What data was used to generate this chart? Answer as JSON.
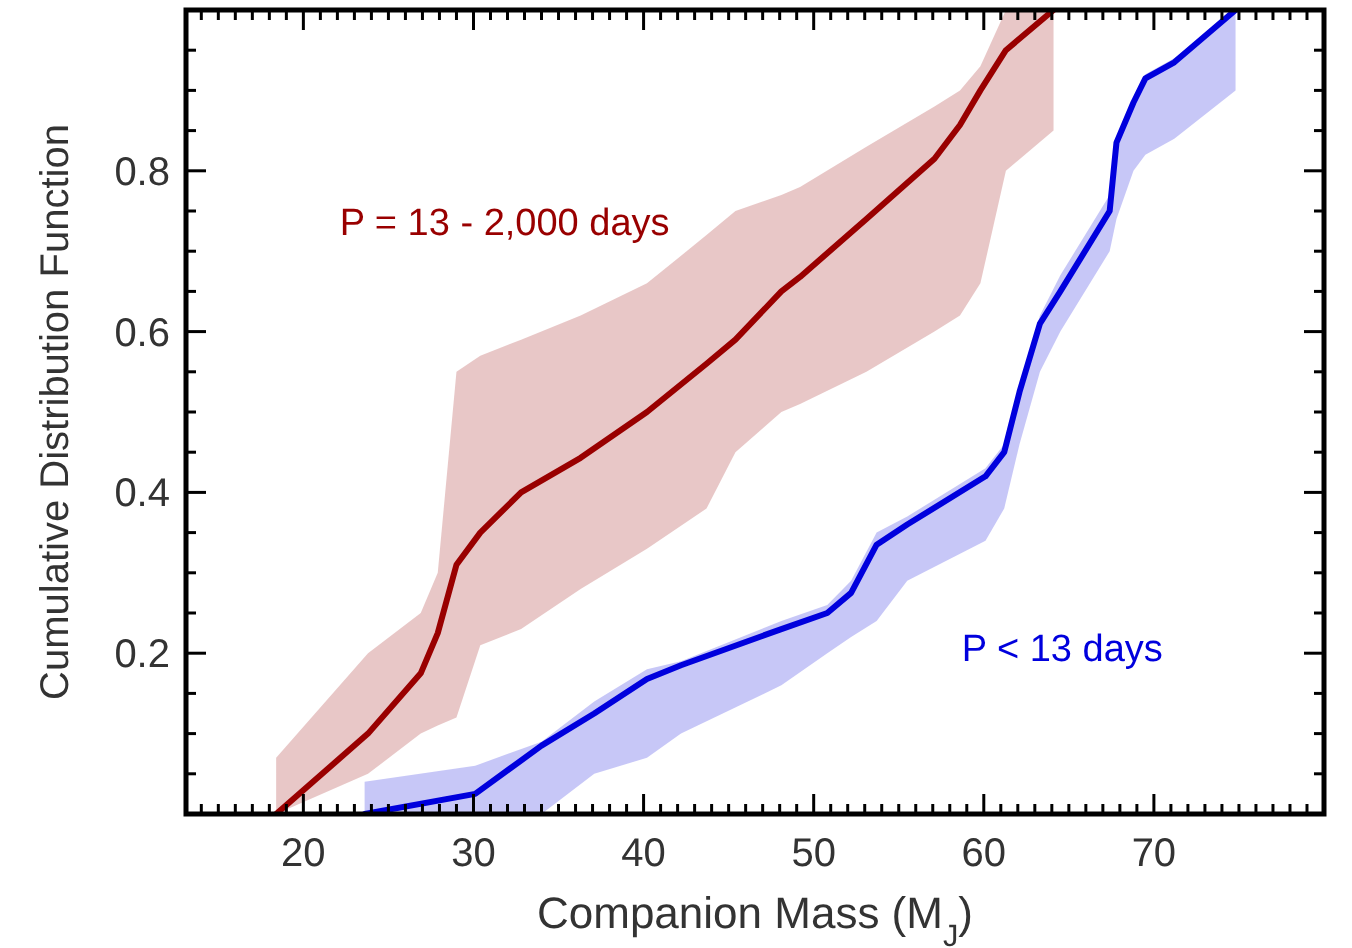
{
  "chart_data": {
    "type": "line",
    "xlabel": "Companion Mass (M$_{J}$)",
    "ylabel": "Cumulative Distribution Function",
    "xlim": [
      13.1,
      80
    ],
    "ylim": [
      0,
      1
    ],
    "xticks": [
      {
        "value": 14,
        "label": null
      },
      {
        "value": 15,
        "label": null
      },
      {
        "value": 16,
        "label": null
      },
      {
        "value": 17,
        "label": null
      },
      {
        "value": 18,
        "label": null
      },
      {
        "value": 19,
        "label": null
      },
      20,
      {
        "value": 21,
        "label": null
      },
      {
        "value": 22,
        "label": null
      },
      {
        "value": 23,
        "label": null
      },
      {
        "value": 24,
        "label": null
      },
      {
        "value": 25,
        "label": null
      },
      {
        "value": 26,
        "label": null
      },
      {
        "value": 27,
        "label": null
      },
      {
        "value": 28,
        "label": null
      },
      {
        "value": 29,
        "label": null
      },
      30,
      {
        "value": 31,
        "label": null
      },
      {
        "value": 32,
        "label": null
      },
      {
        "value": 33,
        "label": null
      },
      {
        "value": 34,
        "label": null
      },
      {
        "value": 35,
        "label": null
      },
      {
        "value": 36,
        "label": null
      },
      {
        "value": 37,
        "label": null
      },
      {
        "value": 38,
        "label": null
      },
      {
        "value": 39,
        "label": null
      },
      40,
      {
        "value": 41,
        "label": null
      },
      {
        "value": 42,
        "label": null
      },
      {
        "value": 43,
        "label": null
      },
      {
        "value": 44,
        "label": null
      },
      {
        "value": 45,
        "label": null
      },
      {
        "value": 46,
        "label": null
      },
      {
        "value": 47,
        "label": null
      },
      {
        "value": 48,
        "label": null
      },
      {
        "value": 49,
        "label": null
      },
      50,
      {
        "value": 51,
        "label": null
      },
      {
        "value": 52,
        "label": null
      },
      {
        "value": 53,
        "label": null
      },
      {
        "value": 54,
        "label": null
      },
      {
        "value": 55,
        "label": null
      },
      {
        "value": 56,
        "label": null
      },
      {
        "value": 57,
        "label": null
      },
      {
        "value": 58,
        "label": null
      },
      {
        "value": 59,
        "label": null
      },
      60,
      {
        "value": 61,
        "label": null
      },
      {
        "value": 62,
        "label": null
      },
      {
        "value": 63,
        "label": null
      },
      {
        "value": 64,
        "label": null
      },
      {
        "value": 65,
        "label": null
      },
      {
        "value": 66,
        "label": null
      },
      {
        "value": 67,
        "label": null
      },
      {
        "value": 68,
        "label": null
      },
      {
        "value": 69,
        "label": null
      },
      70,
      {
        "value": 71,
        "label": null
      },
      {
        "value": 72,
        "label": null
      },
      {
        "value": 73,
        "label": null
      },
      {
        "value": 74,
        "label": null
      },
      {
        "value": 75,
        "label": null
      },
      {
        "value": 76,
        "label": null
      },
      {
        "value": 77,
        "label": null
      },
      {
        "value": 78,
        "label": null
      },
      {
        "value": 79,
        "label": null
      }
    ],
    "yticks": [
      {
        "value": 0.05,
        "label": null
      },
      {
        "value": 0.1,
        "label": null
      },
      {
        "value": 0.15,
        "label": null
      },
      0.2,
      {
        "value": 0.25,
        "label": null
      },
      {
        "value": 0.3,
        "label": null
      },
      {
        "value": 0.35,
        "label": null
      },
      0.4,
      {
        "value": 0.45,
        "label": null
      },
      {
        "value": 0.5,
        "label": null
      },
      {
        "value": 0.55,
        "label": null
      },
      0.6,
      {
        "value": 0.65,
        "label": null
      },
      {
        "value": 0.7,
        "label": null
      },
      {
        "value": 0.75,
        "label": null
      },
      0.8,
      {
        "value": 0.85,
        "label": null
      },
      {
        "value": 0.9,
        "label": null
      },
      {
        "value": 0.95,
        "label": null
      }
    ],
    "grid": false,
    "legend": false,
    "marker": "none",
    "line_style": "solid",
    "series": [
      {
        "name": "P = 13 - 2,000 days",
        "color": "#990000",
        "x": [
          18.4,
          23.8,
          26.9,
          27.9,
          29.0,
          30.4,
          32.8,
          36.3,
          40.2,
          43.7,
          45.4,
          48.1,
          49.2,
          53.1,
          57.1,
          58.6,
          59.8,
          61.3,
          64.1
        ],
        "values": [
          0,
          0.1,
          0.175,
          0.225,
          0.31,
          0.35,
          0.4,
          0.443,
          0.5,
          0.56,
          0.59,
          0.65,
          0.668,
          0.74,
          0.815,
          0.857,
          0.9,
          0.95,
          1.0
        ],
        "upper": [
          0.07,
          0.2,
          0.25,
          0.3,
          0.55,
          0.57,
          0.59,
          0.62,
          0.66,
          0.72,
          0.75,
          0.77,
          0.78,
          0.83,
          0.88,
          0.9,
          0.93,
          1.0,
          1.0
        ],
        "lower": [
          0,
          0.05,
          0.1,
          0.11,
          0.12,
          0.21,
          0.23,
          0.28,
          0.33,
          0.38,
          0.45,
          0.5,
          0.51,
          0.55,
          0.6,
          0.62,
          0.66,
          0.8,
          0.85
        ]
      },
      {
        "name": "P < 13 days",
        "color": "#0000dd",
        "x": [
          23.6,
          30.1,
          34.0,
          37.1,
          40.2,
          42.2,
          48.1,
          50.8,
          52.2,
          53.7,
          55.5,
          60.1,
          61.2,
          62.1,
          63.3,
          64.5,
          67.4,
          67.8,
          68.8,
          69.5,
          71.2,
          74.8
        ],
        "values": [
          0,
          0.025,
          0.085,
          0.125,
          0.168,
          0.185,
          0.23,
          0.25,
          0.275,
          0.335,
          0.36,
          0.42,
          0.45,
          0.525,
          0.61,
          0.65,
          0.75,
          0.835,
          0.885,
          0.915,
          0.935,
          1.0
        ],
        "upper": [
          0.04,
          0.06,
          0.09,
          0.14,
          0.18,
          0.19,
          0.24,
          0.26,
          0.29,
          0.35,
          0.37,
          0.43,
          0.46,
          0.53,
          0.62,
          0.67,
          0.77,
          0.84,
          0.89,
          0.92,
          0.94,
          1.0
        ],
        "lower": [
          0,
          0,
          0,
          0.05,
          0.07,
          0.1,
          0.16,
          0.2,
          0.22,
          0.24,
          0.29,
          0.34,
          0.38,
          0.46,
          0.55,
          0.6,
          0.7,
          0.74,
          0.8,
          0.82,
          0.84,
          0.9
        ]
      }
    ]
  }
}
